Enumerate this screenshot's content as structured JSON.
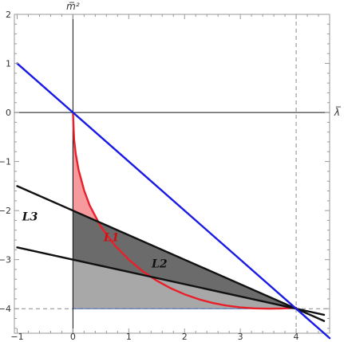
{
  "chart_data": {
    "type": "line",
    "title": "",
    "xlabel": "λ̅",
    "ylabel": "m̅²",
    "xlim": [
      -1.05,
      4.6
    ],
    "ylim": [
      -4.5,
      2
    ],
    "xticks": [
      -1,
      0,
      1,
      2,
      3,
      4
    ],
    "yticks": [
      -4,
      -3,
      -2,
      -1,
      0,
      1,
      2
    ],
    "grid": false,
    "series": [
      {
        "name": "L1",
        "color": "#e8202a",
        "x": [
          0,
          0.02,
          0.05,
          0.1,
          0.2,
          0.3,
          0.5,
          0.75,
          1,
          1.25,
          1.5,
          1.75,
          2,
          2.25,
          2.5,
          2.75,
          3,
          3.25,
          3.5,
          3.75,
          4
        ],
        "y": [
          0,
          -0.545,
          -0.844,
          -1.165,
          -1.589,
          -1.895,
          -2.328,
          -2.707,
          -3.0,
          -3.236,
          -3.427,
          -3.582,
          -3.707,
          -3.806,
          -3.882,
          -3.937,
          -3.973,
          -3.994,
          -4.0,
          -3.996,
          -3.981
        ]
      },
      {
        "name": "L2",
        "color": "#111111",
        "x": [
          -1,
          4.5
        ],
        "y": [
          -2.75,
          -4.125
        ]
      },
      {
        "name": "L3",
        "color": "#111111",
        "x": [
          -1,
          4.5
        ],
        "y": [
          -1.5,
          -4.25
        ]
      },
      {
        "name": "",
        "color": "#1a1ae6",
        "x": [
          -1,
          4.6
        ],
        "y": [
          1,
          -4.6
        ]
      }
    ],
    "reference_lines": {
      "x": 4,
      "y": -4,
      "style": "dashed"
    },
    "regions": [
      {
        "color": "#f79a9e",
        "between": [
          "L1",
          "L3"
        ]
      },
      {
        "color": "#6b6b6b",
        "between": [
          "L3",
          "L2"
        ]
      },
      {
        "color": "#a8a8a8",
        "between": [
          "L2",
          "y=-4"
        ]
      }
    ],
    "annotations": [
      {
        "text": "L1",
        "x": 0.69,
        "y": -2.62,
        "color": "#cc1111"
      },
      {
        "text": "L2",
        "x": 1.55,
        "y": -3.16,
        "color": "#111111"
      },
      {
        "text": "L3",
        "x": -0.77,
        "y": -2.2,
        "color": "#111111"
      }
    ]
  }
}
